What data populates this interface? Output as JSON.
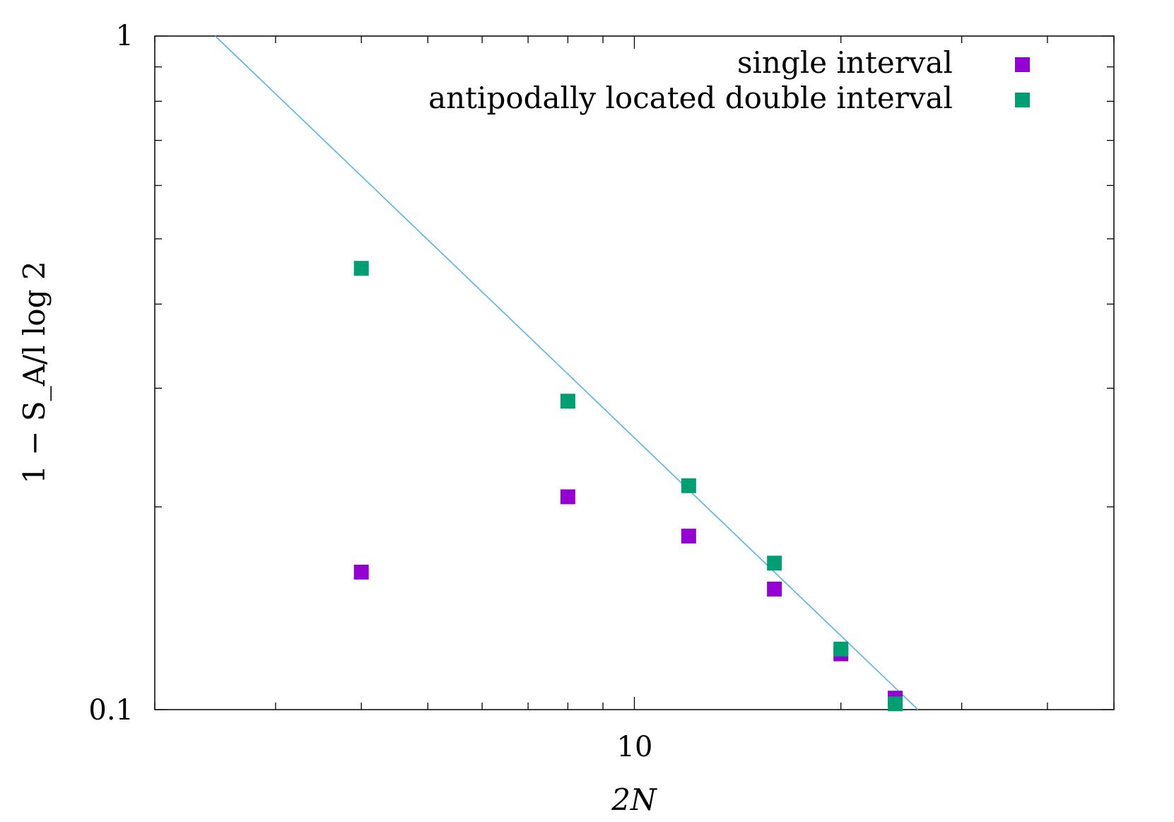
{
  "chart_data": {
    "type": "scatter",
    "title": "",
    "xlabel": "2N",
    "ylabel": "1 − S_A/l log 2",
    "xscale": "log",
    "yscale": "log",
    "xlim": [
      2,
      50
    ],
    "ylim": [
      0.1,
      1
    ],
    "x_tick_labels": [
      "10"
    ],
    "y_tick_labels": [
      "1",
      "0.1"
    ],
    "grid": false,
    "legend_position": "top-right",
    "series": [
      {
        "name": "single interval",
        "color": "#9400d3",
        "marker": "square",
        "points": [
          {
            "x": 4,
            "y": 0.16
          },
          {
            "x": 8,
            "y": 0.207
          },
          {
            "x": 12,
            "y": 0.181
          },
          {
            "x": 16,
            "y": 0.151
          },
          {
            "x": 20,
            "y": 0.121
          },
          {
            "x": 24,
            "y": 0.104
          }
        ]
      },
      {
        "name": "antipodally located double interval",
        "color": "#009e73",
        "marker": "square",
        "points": [
          {
            "x": 4,
            "y": 0.452
          },
          {
            "x": 8,
            "y": 0.287
          },
          {
            "x": 12,
            "y": 0.215
          },
          {
            "x": 16,
            "y": 0.165
          },
          {
            "x": 20,
            "y": 0.123
          },
          {
            "x": 24,
            "y": 0.102
          }
        ]
      }
    ],
    "fit_line": {
      "color": "#56b4e9",
      "points": [
        {
          "x": 2.45,
          "y": 1.0
        },
        {
          "x": 25.9,
          "y": 0.1
        }
      ]
    }
  }
}
